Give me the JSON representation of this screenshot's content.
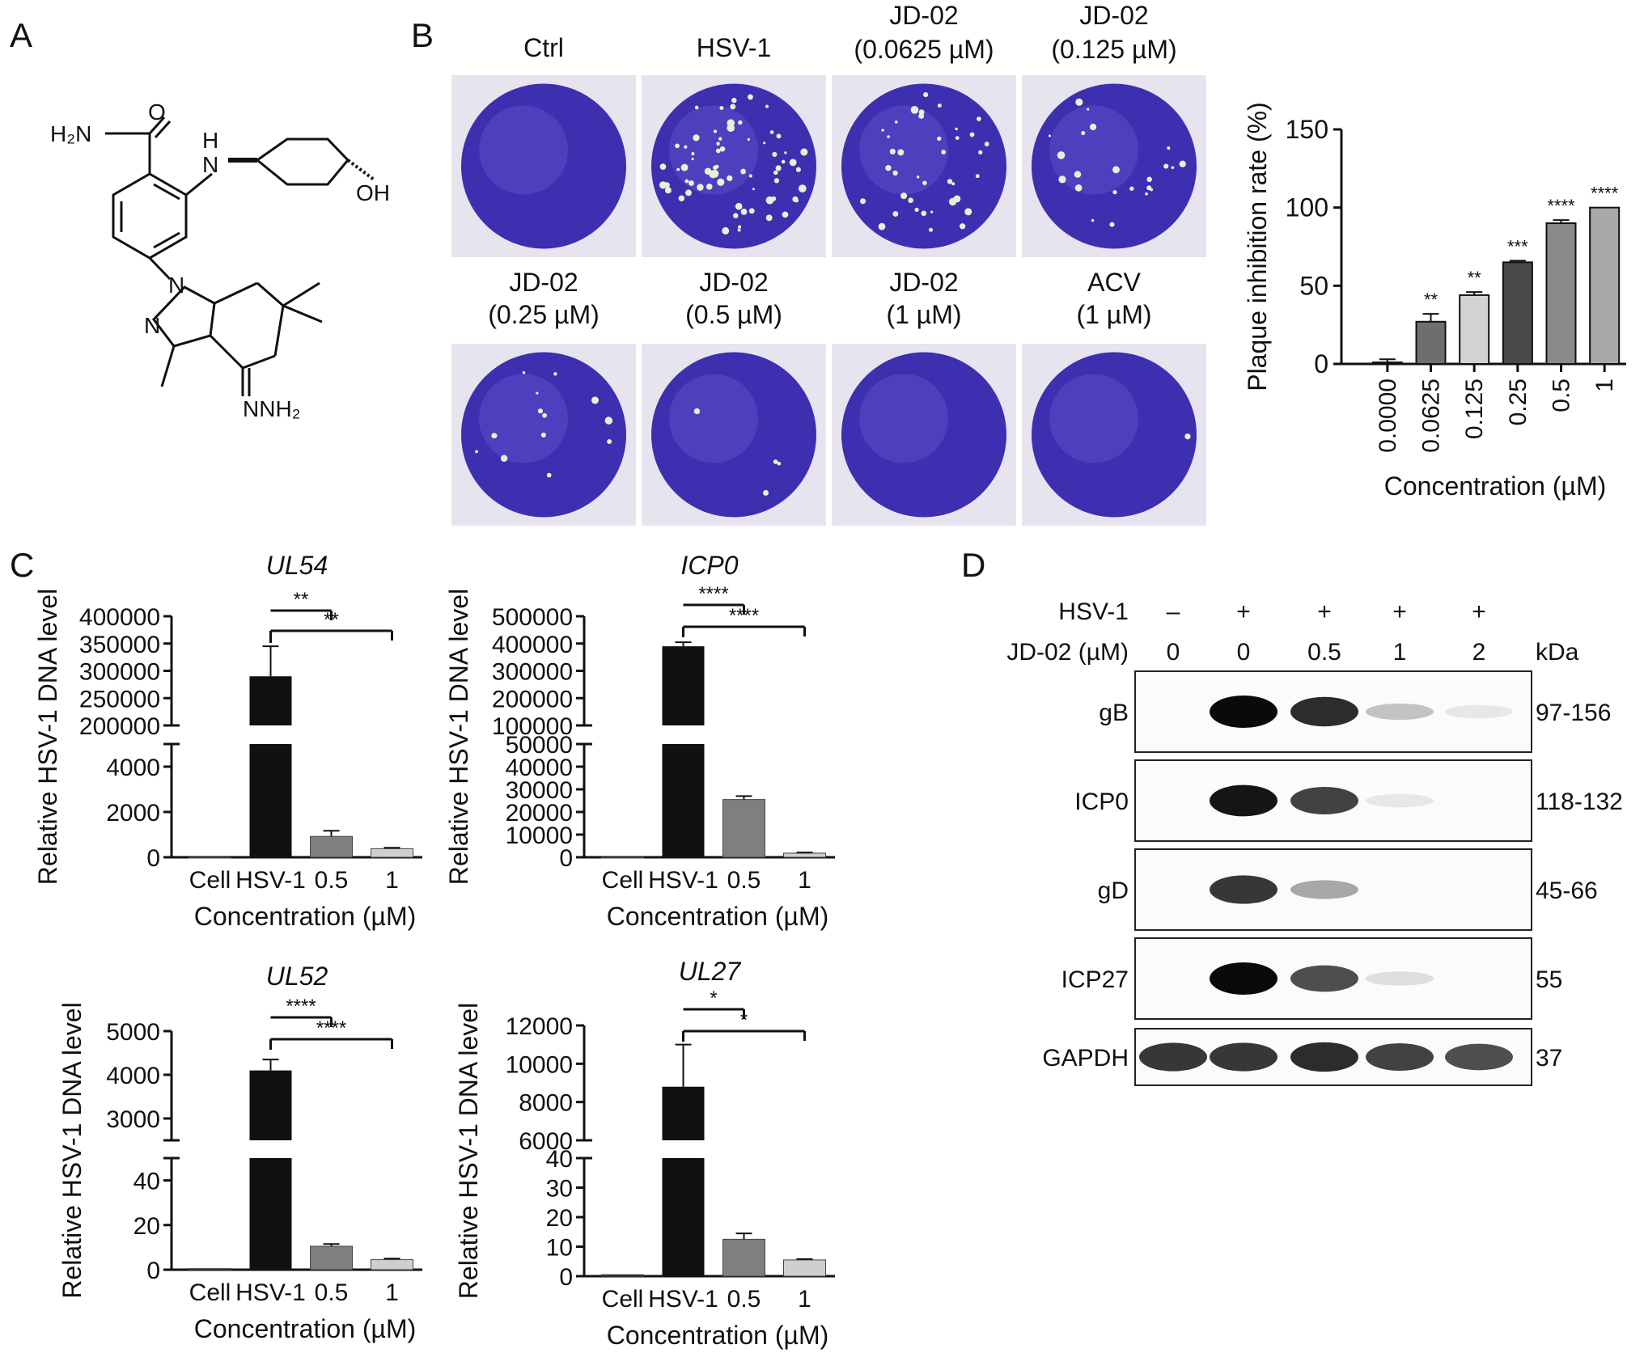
{
  "panel_labels": {
    "a": "A",
    "b": "B",
    "c": "C",
    "d": "D"
  },
  "panel_a": {
    "molecule": {
      "amide_o": "O",
      "amide_n": "H₂N",
      "amine_h": "H",
      "amine_n": "N",
      "hydroxyl": "OH",
      "pyrazole_n1": "N",
      "pyrazole_n2": "N",
      "hydrazone": "NNH₂"
    }
  },
  "panel_b": {
    "wells_top": [
      {
        "label1": "Ctrl",
        "label2": "",
        "plaques": 0
      },
      {
        "label1": "HSV-1",
        "label2": "",
        "plaques": 70
      },
      {
        "label1": "JD-02",
        "label2": "(0.0625 µM)",
        "plaques": 38
      },
      {
        "label1": "JD-02",
        "label2": "(0.125 µM)",
        "plaques": 22
      }
    ],
    "wells_bottom": [
      {
        "label1": "JD-02",
        "label2": "(0.25 µM)",
        "plaques": 14
      },
      {
        "label1": "JD-02",
        "label2": "(0.5 µM)",
        "plaques": 4
      },
      {
        "label1": "JD-02",
        "label2": "(1 µM)",
        "plaques": 0
      },
      {
        "label1": "ACV",
        "label2": "(1 µM)",
        "plaques": 1
      }
    ],
    "colors": {
      "stain": "#3d2fb0",
      "stain_light": "#6c5fd6",
      "plate": "#e7e4ef",
      "plaque": "#e9f0d8"
    }
  },
  "chart_data": [
    {
      "id": "plaque",
      "type": "bar",
      "categories": [
        "0.0000",
        "0.0625",
        "0.125",
        "0.25",
        "0.5",
        "1"
      ],
      "values": [
        1,
        27,
        44,
        65,
        90,
        100
      ],
      "errors": [
        2,
        5,
        2,
        1,
        2,
        0
      ],
      "significance": [
        "",
        "**",
        "**",
        "***",
        "****",
        "****"
      ],
      "colors": [
        "#1a1a1a",
        "#6e6e6e",
        "#d2d2d2",
        "#4a4a4a",
        "#8a8a8a",
        "#a8a8a8"
      ],
      "ylabel": "Plaque inhibition rate (%)",
      "xlabel": "Concentration (µM)",
      "ylim": [
        0,
        150
      ],
      "yticks": [
        "0",
        "50",
        "100",
        "150"
      ]
    },
    {
      "id": "ul54",
      "type": "bar",
      "title": "UL54",
      "broken_axis": true,
      "categories": [
        "Cell",
        "HSV-1",
        "0.5",
        "1"
      ],
      "values": [
        0,
        290000,
        920,
        380
      ],
      "errors": [
        0,
        55000,
        250,
        40
      ],
      "colors": [
        "#1a1a1a",
        "#111111",
        "#7f7f7f",
        "#cfcfcf"
      ],
      "ylabel": "Relative HSV-1 DNA level",
      "xlabel": "Concentration (µM)",
      "lower_range": [
        0,
        5000
      ],
      "lower_ticks": [
        "0",
        "2000",
        "4000"
      ],
      "upper_range": [
        200000,
        400000
      ],
      "upper_ticks": [
        "200000",
        "250000",
        "300000",
        "350000",
        "400000"
      ],
      "brackets": [
        {
          "to": 2,
          "label": "**"
        },
        {
          "to": 3,
          "label": "**"
        }
      ]
    },
    {
      "id": "icp0",
      "type": "bar",
      "title": "ICP0",
      "broken_axis": true,
      "categories": [
        "Cell",
        "HSV-1",
        "0.5",
        "1"
      ],
      "values": [
        0,
        390000,
        25500,
        1800
      ],
      "errors": [
        0,
        15000,
        1500,
        300
      ],
      "colors": [
        "#1a1a1a",
        "#111111",
        "#7f7f7f",
        "#cfcfcf"
      ],
      "ylabel": "Relative HSV-1 DNA level",
      "xlabel": "Concentration (µM)",
      "lower_range": [
        0,
        50000
      ],
      "lower_ticks": [
        "0",
        "10000",
        "20000",
        "30000",
        "40000",
        "50000"
      ],
      "upper_range": [
        100000,
        500000
      ],
      "upper_ticks": [
        "100000",
        "200000",
        "300000",
        "400000",
        "500000"
      ],
      "brackets": [
        {
          "to": 2,
          "label": "****"
        },
        {
          "to": 3,
          "label": "****"
        }
      ]
    },
    {
      "id": "ul52",
      "type": "bar",
      "title": "UL52",
      "broken_axis": true,
      "categories": [
        "Cell",
        "HSV-1",
        "0.5",
        "1"
      ],
      "values": [
        0.5,
        4100,
        10.5,
        4.5
      ],
      "errors": [
        0,
        250,
        1,
        0.5
      ],
      "colors": [
        "#1a1a1a",
        "#111111",
        "#7f7f7f",
        "#cfcfcf"
      ],
      "ylabel": "Relative HSV-1 DNA level",
      "xlabel": "Concentration (µM)",
      "lower_range": [
        0,
        50
      ],
      "lower_ticks": [
        "0",
        "20",
        "40"
      ],
      "upper_range": [
        2500,
        5000
      ],
      "upper_ticks": [
        "3000",
        "4000",
        "5000"
      ],
      "brackets": [
        {
          "to": 2,
          "label": "****"
        },
        {
          "to": 3,
          "label": "****"
        }
      ]
    },
    {
      "id": "ul27",
      "type": "bar",
      "title": "UL27",
      "broken_axis": true,
      "categories": [
        "Cell",
        "HSV-1",
        "0.5",
        "1"
      ],
      "values": [
        0.5,
        8800,
        12.5,
        5.5
      ],
      "errors": [
        0,
        2200,
        2,
        0.3
      ],
      "colors": [
        "#1a1a1a",
        "#111111",
        "#7f7f7f",
        "#cfcfcf"
      ],
      "ylabel": "Relative HSV-1 DNA level",
      "xlabel": "Concentration (µM)",
      "lower_range": [
        0,
        40
      ],
      "lower_ticks": [
        "0",
        "10",
        "20",
        "30",
        "40"
      ],
      "upper_range": [
        6000,
        12000
      ],
      "upper_ticks": [
        "6000",
        "8000",
        "10000",
        "12000"
      ],
      "brackets": [
        {
          "to": 2,
          "label": "*"
        },
        {
          "to": 3,
          "label": "*"
        }
      ]
    }
  ],
  "panel_d": {
    "row1_label": "HSV-1",
    "row1_values": [
      "–",
      "+",
      "+",
      "+",
      "+"
    ],
    "row2_label": "JD-02 (µM)",
    "row2_values": [
      "0",
      "0",
      "0.5",
      "1",
      "2"
    ],
    "kda_label": "kDa",
    "blots": [
      {
        "name": "gB",
        "kda": "97-156",
        "intensities": [
          0,
          1.0,
          0.85,
          0.18,
          0.02
        ]
      },
      {
        "name": "ICP0",
        "kda": "118-132",
        "intensities": [
          0,
          0.95,
          0.75,
          0.02,
          0
        ]
      },
      {
        "name": "gD",
        "kda": "45-66",
        "intensities": [
          0,
          0.8,
          0.3,
          0,
          0
        ]
      },
      {
        "name": "ICP27",
        "kda": "55",
        "intensities": [
          0,
          1.0,
          0.7,
          0.06,
          0
        ]
      },
      {
        "name": "GAPDH",
        "kda": "37",
        "intensities": [
          0.8,
          0.8,
          0.85,
          0.75,
          0.7
        ]
      }
    ]
  }
}
